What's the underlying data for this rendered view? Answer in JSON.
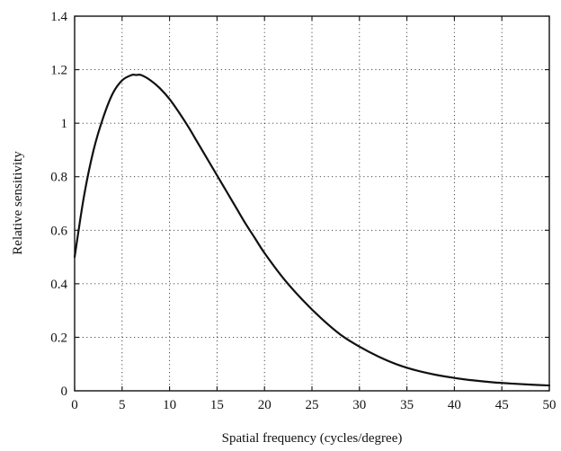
{
  "chart_data": {
    "type": "line",
    "title": "",
    "xlabel": "Spatial frequency (cycles/degree)",
    "ylabel": "Relative sensitivity",
    "xlim": [
      0,
      50
    ],
    "ylim": [
      0,
      1.4
    ],
    "x_ticks": [
      "0",
      "5",
      "10",
      "15",
      "20",
      "25",
      "30",
      "35",
      "40",
      "45",
      "50"
    ],
    "y_ticks": [
      "0",
      "0.2",
      "0.4",
      "0.6",
      "0.8",
      "1",
      "1.2",
      "1.4"
    ],
    "grid": true,
    "legend": "none",
    "line_color": "#111111",
    "series": [
      {
        "x": [
          0,
          1,
          2,
          3,
          4,
          5,
          6,
          6.5,
          7,
          8,
          9,
          10,
          11,
          12,
          13,
          14,
          15,
          16,
          17,
          18,
          19,
          20,
          22,
          24,
          26,
          28,
          30,
          32,
          34,
          36,
          38,
          40,
          42,
          44,
          46,
          48,
          50
        ],
        "y": [
          0.5,
          0.73,
          0.9,
          1.02,
          1.11,
          1.16,
          1.18,
          1.18,
          1.18,
          1.16,
          1.13,
          1.09,
          1.04,
          0.985,
          0.925,
          0.865,
          0.805,
          0.745,
          0.685,
          0.625,
          0.57,
          0.515,
          0.42,
          0.34,
          0.27,
          0.21,
          0.165,
          0.128,
          0.098,
          0.076,
          0.06,
          0.048,
          0.039,
          0.032,
          0.027,
          0.023,
          0.02
        ]
      }
    ]
  }
}
